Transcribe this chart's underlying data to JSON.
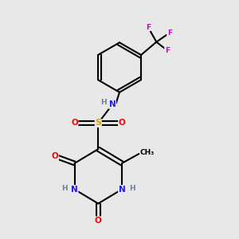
{
  "bg_color": "#e8e8e8",
  "bond_color": "#000000",
  "atom_colors": {
    "N": "#1a1aff",
    "O": "#ff0000",
    "S": "#ccaa00",
    "F": "#cc00cc",
    "H": "#708090",
    "C": "#000000"
  }
}
